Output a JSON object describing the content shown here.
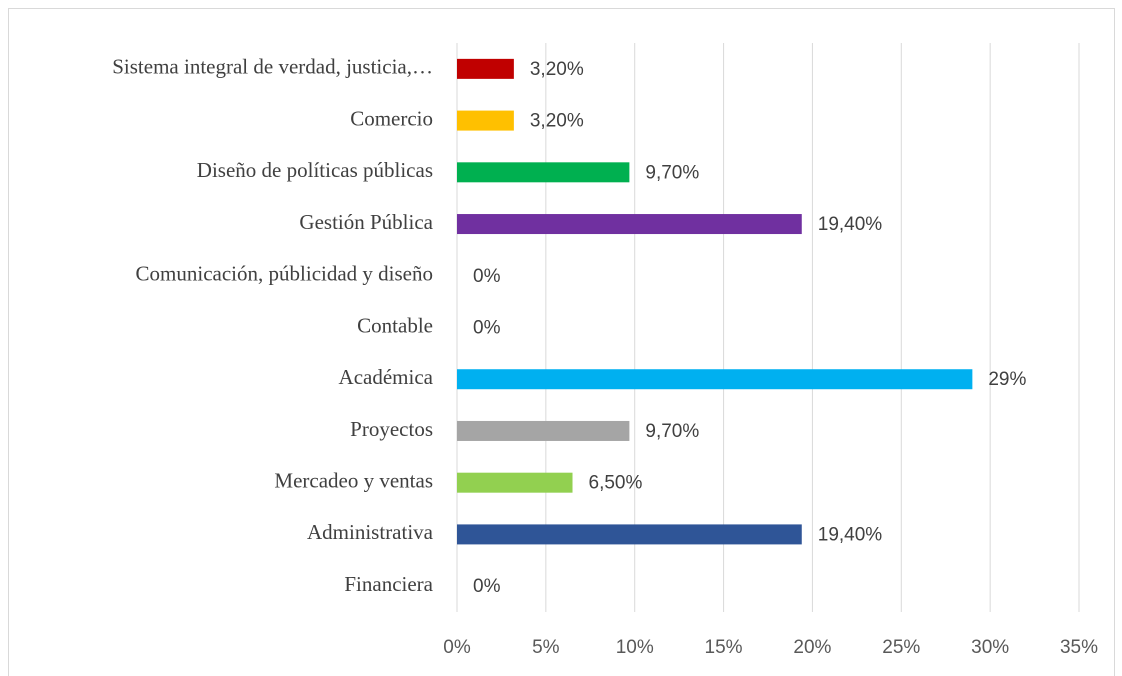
{
  "chart_data": {
    "type": "barh",
    "categories": [
      "Sistema integral de verdad, justicia,…",
      "Comercio",
      "Diseño de políticas públicas",
      "Gestión Pública",
      "Comunicación, públicidad y diseño",
      "Contable",
      "Académica",
      "Proyectos",
      "Mercadeo y ventas",
      "Administrativa",
      "Financiera"
    ],
    "values": [
      3.2,
      3.2,
      9.7,
      19.4,
      0,
      0,
      29,
      9.7,
      6.5,
      19.4,
      0
    ],
    "value_labels": [
      "3,20%",
      "3,20%",
      "9,70%",
      "19,40%",
      "0%",
      "0%",
      "29%",
      "9,70%",
      "6,50%",
      "19,40%",
      "0%"
    ],
    "colors": [
      "#c00000",
      "#ffc000",
      "#00b050",
      "#7030a0",
      null,
      null,
      "#00b0f0",
      "#a5a5a5",
      "#92d050",
      "#2f5597",
      null
    ],
    "xlim": [
      0,
      35
    ],
    "xticks": [
      {
        "value": 0,
        "label": "0%"
      },
      {
        "value": 5,
        "label": "5%"
      },
      {
        "value": 10,
        "label": "10%"
      },
      {
        "value": 15,
        "label": "15%"
      },
      {
        "value": 20,
        "label": "20%"
      },
      {
        "value": 25,
        "label": "25%"
      },
      {
        "value": 30,
        "label": "30%"
      },
      {
        "value": 35,
        "label": "35%"
      }
    ],
    "grid": true
  }
}
